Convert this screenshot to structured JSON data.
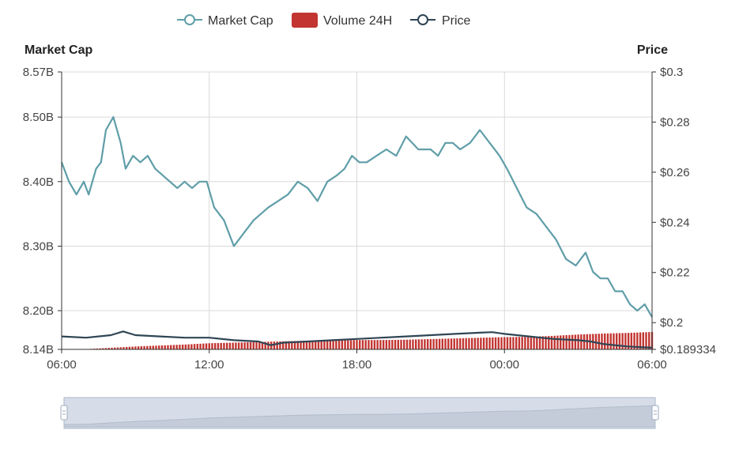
{
  "legend": {
    "market_cap": "Market Cap",
    "volume": "Volume 24H",
    "price": "Price"
  },
  "chart_data": {
    "type": "line",
    "y_left_title": "Market Cap",
    "y_right_title": "Price",
    "x_ticks": [
      "06:00",
      "12:00",
      "18:00",
      "00:00",
      "06:00"
    ],
    "x_range_hours": [
      0,
      24
    ],
    "y_left_ticks": [
      "8.57B",
      "8.50B",
      "8.40B",
      "8.30B",
      "8.20B",
      "8.14B"
    ],
    "y_left_tick_values": [
      8.57,
      8.5,
      8.4,
      8.3,
      8.2,
      8.14
    ],
    "y_left_range": [
      8.14,
      8.57
    ],
    "y_right_ticks": [
      "$0.3",
      "$0.28",
      "$0.26",
      "$0.24",
      "$0.22",
      "$0.2",
      "$0.189334"
    ],
    "y_right_tick_values": [
      0.3,
      0.28,
      0.26,
      0.24,
      0.22,
      0.2,
      0.189334
    ],
    "y_right_range": [
      0.189334,
      0.3
    ],
    "colors": {
      "market_cap": "#5f9ea8",
      "volume": "#c23531",
      "price": "#2f4554",
      "grid": "#d9d9d9",
      "axis": "#333333",
      "slider_fill": "#d7dde8",
      "slider_border": "#aab6c8"
    },
    "series": [
      {
        "name": "Market Cap",
        "axis": "left",
        "x": [
          0,
          0.3,
          0.6,
          0.9,
          1.1,
          1.4,
          1.6,
          1.8,
          2.1,
          2.4,
          2.6,
          2.9,
          3.2,
          3.5,
          3.8,
          4.1,
          4.4,
          4.7,
          5.0,
          5.3,
          5.6,
          5.9,
          6.2,
          6.6,
          7.0,
          7.4,
          7.8,
          8.1,
          8.4,
          8.8,
          9.2,
          9.6,
          10.0,
          10.4,
          10.8,
          11.2,
          11.5,
          11.8,
          12.1,
          12.4,
          12.8,
          13.2,
          13.6,
          14.0,
          14.5,
          15.0,
          15.3,
          15.6,
          15.9,
          16.2,
          16.6,
          17.0,
          17.4,
          17.8,
          18.1,
          18.5,
          18.9,
          19.3,
          19.7,
          20.1,
          20.5,
          20.9,
          21.3,
          21.6,
          21.9,
          22.2,
          22.5,
          22.8,
          23.1,
          23.4,
          23.7,
          24.0
        ],
        "values": [
          8.43,
          8.4,
          8.38,
          8.4,
          8.38,
          8.42,
          8.43,
          8.48,
          8.5,
          8.46,
          8.42,
          8.44,
          8.43,
          8.44,
          8.42,
          8.41,
          8.4,
          8.39,
          8.4,
          8.39,
          8.4,
          8.4,
          8.36,
          8.34,
          8.3,
          8.32,
          8.34,
          8.35,
          8.36,
          8.37,
          8.38,
          8.4,
          8.39,
          8.37,
          8.4,
          8.41,
          8.42,
          8.44,
          8.43,
          8.43,
          8.44,
          8.45,
          8.44,
          8.47,
          8.45,
          8.45,
          8.44,
          8.46,
          8.46,
          8.45,
          8.46,
          8.48,
          8.46,
          8.44,
          8.42,
          8.39,
          8.36,
          8.35,
          8.33,
          8.31,
          8.28,
          8.27,
          8.29,
          8.26,
          8.25,
          8.25,
          8.23,
          8.23,
          8.21,
          8.2,
          8.21,
          8.19
        ]
      },
      {
        "name": "Price",
        "axis": "right",
        "x": [
          0,
          1,
          2,
          2.5,
          3,
          4,
          5,
          6,
          7,
          8,
          8.5,
          9,
          10,
          11,
          12,
          13,
          14,
          15,
          16,
          17,
          17.5,
          18,
          19,
          20,
          21,
          21.5,
          22,
          23,
          24
        ],
        "values": [
          0.1945,
          0.194,
          0.195,
          0.1965,
          0.195,
          0.1945,
          0.194,
          0.194,
          0.193,
          0.1925,
          0.191,
          0.192,
          0.1925,
          0.193,
          0.1935,
          0.194,
          0.1945,
          0.195,
          0.1955,
          0.196,
          0.1962,
          0.1955,
          0.1945,
          0.1935,
          0.193,
          0.1925,
          0.1915,
          0.1905,
          0.19
        ]
      },
      {
        "name": "Volume 24H",
        "axis": "left",
        "x": [
          0,
          1,
          2,
          3,
          4,
          5,
          6,
          7,
          8,
          9,
          10,
          11,
          12,
          13,
          14,
          15,
          16,
          17,
          18,
          19,
          20,
          21,
          22,
          23,
          24
        ],
        "values": [
          8.14,
          8.1405,
          8.1425,
          8.1445,
          8.146,
          8.1475,
          8.1495,
          8.1505,
          8.1515,
          8.1525,
          8.1535,
          8.154,
          8.1545,
          8.1545,
          8.155,
          8.156,
          8.157,
          8.158,
          8.159,
          8.1595,
          8.161,
          8.163,
          8.1645,
          8.1655,
          8.167
        ]
      }
    ],
    "grid": true,
    "legend_position": "top-center",
    "data_zoom": true
  }
}
